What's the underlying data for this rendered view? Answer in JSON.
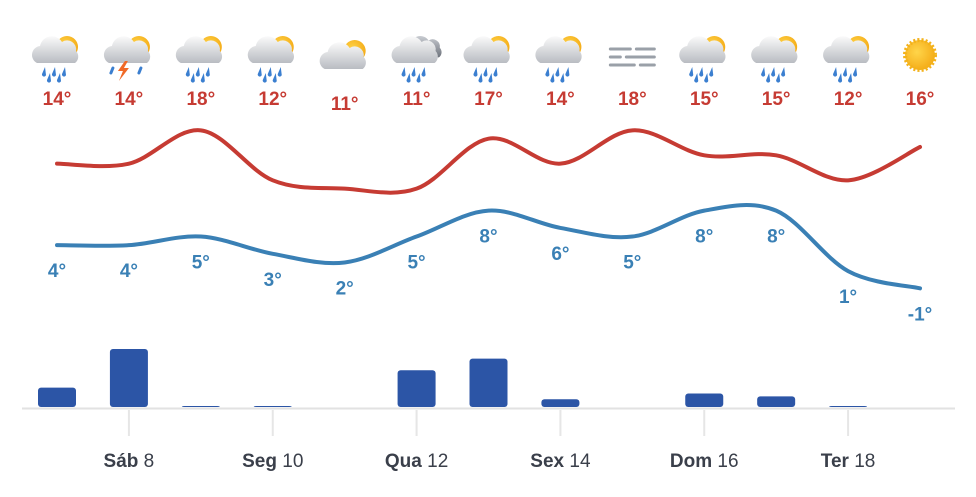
{
  "chart_data": [
    {
      "type": "line",
      "series": [
        {
          "color": "#c63b33",
          "values": [
            14,
            14,
            18,
            12,
            11,
            11,
            17,
            14,
            18,
            15,
            15,
            12,
            16
          ],
          "value_labels": [
            "14°",
            "14°",
            "18°",
            "12°",
            "11°",
            "11°",
            "17°",
            "14°",
            "18°",
            "15°",
            "15°",
            "12°",
            "16°"
          ]
        },
        {
          "color": "#3a80b5",
          "axis": "y2",
          "values": [
            4,
            4,
            5,
            3,
            2,
            5,
            8,
            6,
            5,
            8,
            8,
            1,
            -1
          ],
          "value_labels": [
            "4°",
            "4°",
            "5°",
            "3°",
            "2°",
            "5°",
            "8°",
            "6°",
            "5°",
            "8°",
            "8°",
            "1°",
            "-1°"
          ]
        }
      ],
      "ylim": [
        10,
        19
      ],
      "y2lim": [
        -2,
        9
      ]
    },
    {
      "type": "bar",
      "color": "#2c55a6",
      "categories": [
        null,
        "Sáb 8",
        null,
        "Seg 10",
        null,
        "Qua 12",
        null,
        "Sex 14",
        null,
        "Dom 16",
        null,
        "Ter 18",
        null
      ],
      "values": [
        2,
        6,
        0.1,
        0.1,
        0,
        3.8,
        5,
        0.8,
        0,
        1.4,
        1.1,
        0.1,
        0
      ],
      "ylim": [
        0,
        6
      ]
    }
  ]
}
